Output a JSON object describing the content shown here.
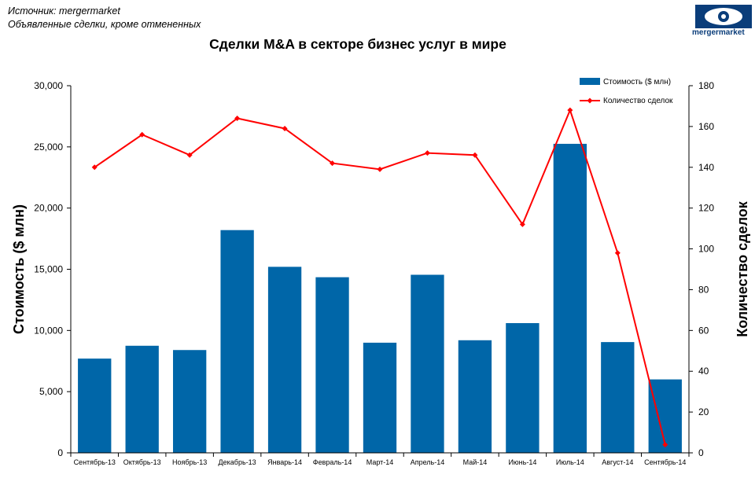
{
  "source_line1": "Источник: mergermarket",
  "source_line2": "Объявленные сделки, кроме отмененных",
  "logo_text": "mergermarket",
  "colors": {
    "bar": "#0066a8",
    "line": "#ff0000",
    "logo": "#0a3d7a"
  },
  "chart_data": {
    "type": "bar+line",
    "title": "Сделки M&A в секторе бизнес услуг в мире",
    "categories": [
      "Сентябрь-13",
      "Октябрь-13",
      "Ноябрь-13",
      "Декабрь-13",
      "Январь-14",
      "Февраль-14",
      "Март-14",
      "Апрель-14",
      "Май-14",
      "Июнь-14",
      "Июль-14",
      "Август-14",
      "Сентябрь-14"
    ],
    "series": [
      {
        "name": "Стоимость ($ млн)",
        "type": "bar",
        "axis": "left",
        "values": [
          7700,
          8750,
          8400,
          18200,
          15200,
          14350,
          9000,
          14550,
          9200,
          10600,
          25250,
          9050,
          6000
        ]
      },
      {
        "name": "Количество сделок",
        "type": "line",
        "axis": "right",
        "values": [
          140,
          156,
          146,
          164,
          159,
          142,
          139,
          147,
          146,
          112,
          168,
          98,
          4
        ]
      }
    ],
    "ylabel": "Стоимость  ($ млн)",
    "y2label": "Количество сделок",
    "ylim": [
      0,
      30000
    ],
    "y2lim": [
      0,
      180
    ],
    "yticks": [
      "0",
      "5,000",
      "10,000",
      "15,000",
      "20,000",
      "25,000",
      "30,000"
    ],
    "y2ticks": [
      "0",
      "20",
      "40",
      "60",
      "80",
      "100",
      "120",
      "140",
      "160",
      "180"
    ],
    "legend_position": "top-right",
    "grid": false
  }
}
